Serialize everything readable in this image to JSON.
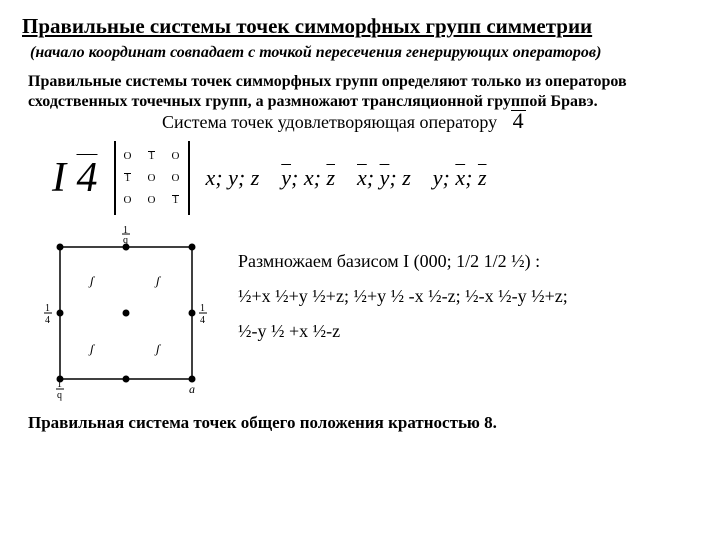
{
  "title": "Правильные системы точек симморфных групп симметрии",
  "subtitle": "(начало координат совпадает с точкой пересечения генерирующих операторов)",
  "para1": "Правильные системы точек симморфных групп определяют только из операторов сходственных точечных групп, а размножают трансляционной группой Бравэ.",
  "para1_tail": "Система точек удовлетворяющая оператору",
  "operator_symbol": "4",
  "ibar_symbol": "I 4",
  "matrix": {
    "r1": [
      "O",
      "1",
      "O"
    ],
    "r2": [
      "1",
      "O",
      "O"
    ],
    "r3": [
      "O",
      "O",
      "1"
    ],
    "overlines": [
      [
        0,
        1
      ],
      [
        1,
        0
      ],
      [
        2,
        2
      ]
    ]
  },
  "coords": [
    {
      "txt": "x; y; z",
      "bars": []
    },
    {
      "txt": "y; x; z",
      "bars": [
        0,
        2
      ]
    },
    {
      "txt": "x; y; z",
      "bars": [
        0,
        1
      ]
    },
    {
      "txt": "y; x; z",
      "bars": [
        1,
        2
      ]
    }
  ],
  "basis_line": "Размножаем базисом I (000; 1/2 1/2 ½) :",
  "ops_line1": "½+x  ½+y  ½+z;  ½+y  ½ -x  ½-z;  ½-x  ½-y ½+z;",
  "ops_line2": "½-y  ½ +x  ½-z",
  "final": "Правильная система точек общего положения кратностью 8.",
  "diagram": {
    "top_label": "1",
    "top_sub": "q",
    "left_label": "1",
    "left_sub": "4",
    "right_label": "1",
    "right_sub": "4",
    "br_label": "a",
    "bl_label": "1",
    "bl_sub": "q"
  },
  "style": {
    "bg": "#ffffff",
    "fg": "#000000",
    "title_fs": 21,
    "body_fs": 16,
    "formula_fs": 22
  }
}
